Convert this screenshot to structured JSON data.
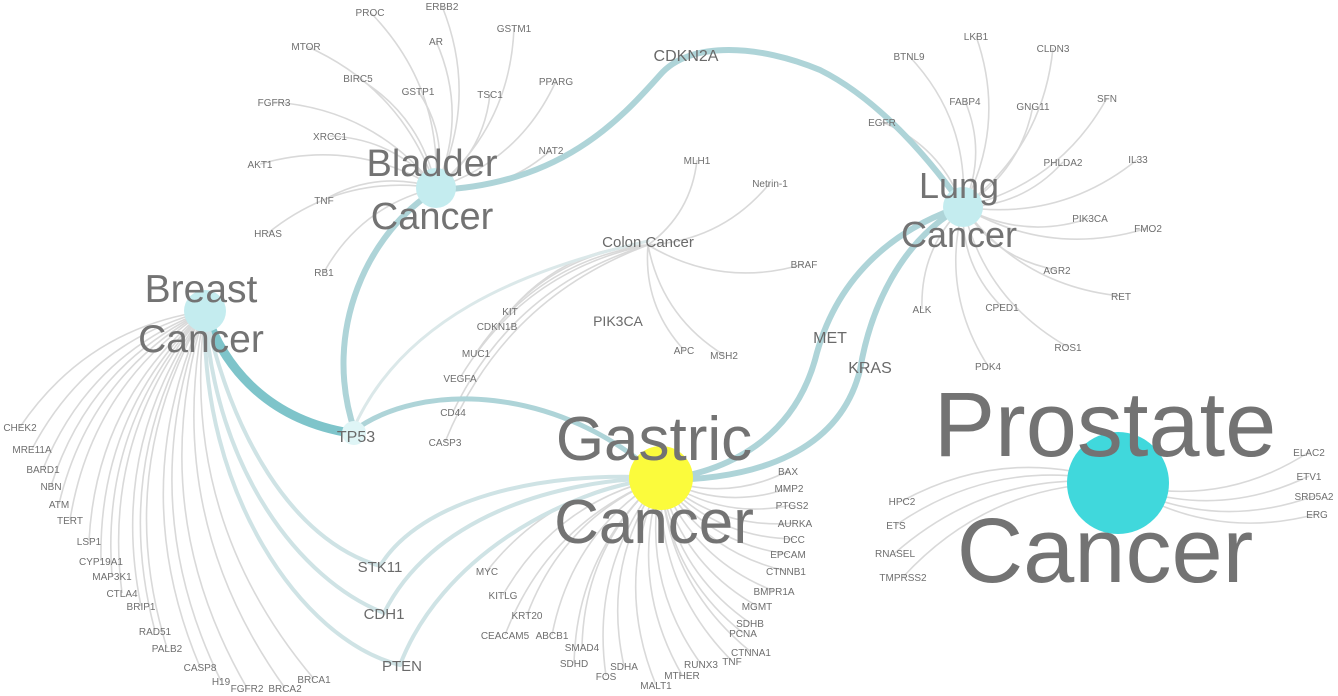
{
  "colors": {
    "background": "#ffffff",
    "thin_edge": "#d9d9d9",
    "thick_edge": "#aed4d8",
    "breast_tp53_edge": "#7ec4ca",
    "node_small": "#c4ecef",
    "node_gastric": "#fbfb3c",
    "node_prostate": "#40d8dc",
    "text": "#737373"
  },
  "cancers": {
    "bladder": {
      "line1": "Bladder",
      "line2": "Cancer"
    },
    "breast": {
      "line1": "Breast",
      "line2": "Cancer"
    },
    "lung": {
      "line1": "Lung",
      "line2": "Cancer"
    },
    "gastric": {
      "line1": "Gastric",
      "line2": "Cancer"
    },
    "prostate": {
      "line1": "Prostate",
      "line2": "Cancer"
    }
  },
  "hubs": {
    "cdkn2a": "CDKN2A",
    "tp53": "TP53",
    "colon": "Colon Cancer",
    "pik3ca": "PIK3CA",
    "met": "MET",
    "kras": "KRAS",
    "stk11": "STK11",
    "cdh1": "CDH1",
    "pten": "PTEN"
  },
  "genes": {
    "bladder": [
      "PROC",
      "ERBB2",
      "GSTM1",
      "MTOR",
      "AR",
      "BIRC5",
      "GSTP1",
      "PPARG",
      "TSC1",
      "FGFR3",
      "XRCC1",
      "NAT2",
      "AKT1",
      "TNF",
      "HRAS",
      "RB1"
    ],
    "colon": [
      "MLH1",
      "Netrin-1",
      "BRAF",
      "KIT",
      "CDKN1B",
      "MUC1",
      "VEGFA",
      "CD44",
      "CASP3",
      "APC",
      "MSH2"
    ],
    "lung": [
      "LKB1",
      "BTNL9",
      "CLDN3",
      "FABP4",
      "GNG11",
      "SFN",
      "EGFR",
      "PHLDA2",
      "IL33",
      "PIK3CA",
      "FMO2",
      "AGR2",
      "RET",
      "ALK",
      "CPED1",
      "ROS1",
      "PDK4"
    ],
    "breast": [
      "CHEK2",
      "MRE11A",
      "BARD1",
      "NBN",
      "ATM",
      "TERT",
      "LSP1",
      "CYP19A1",
      "MAP3K1",
      "CTLA4",
      "BRIP1",
      "RAD51",
      "PALB2",
      "CASP8",
      "H19",
      "FGFR2",
      "BRCA2",
      "BRCA1"
    ],
    "gastric_right": [
      "BAX",
      "MMP2",
      "PTGS2",
      "AURKA",
      "DCC",
      "EPCAM",
      "CTNNB1",
      "BMPR1A",
      "MGMT",
      "SDHB",
      "PCNA",
      "CTNNA1",
      "TNF",
      "RUNX3"
    ],
    "gastric_bottom": [
      "MYC",
      "KITLG",
      "KRT20",
      "CEACAM5",
      "ABCB1",
      "SMAD4",
      "SDHD",
      "SDHA",
      "FOS",
      "MALT1",
      "MTHER"
    ],
    "prostate_left": [
      "HPC2",
      "ETS",
      "RNASEL",
      "TMPRSS2"
    ],
    "prostate_right": [
      "ELAC2",
      "ETV1",
      "SRD5A2",
      "ERG"
    ]
  }
}
